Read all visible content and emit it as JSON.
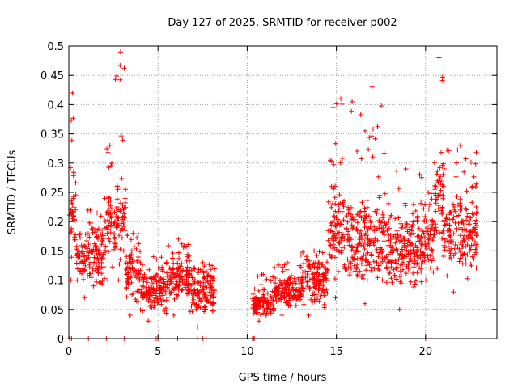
{
  "chart_data": {
    "type": "scatter",
    "title": "Day 127 of 2025, SRMTID for receiver p002",
    "xlabel": "GPS time / hours",
    "ylabel": "SRMTID / TECUs",
    "xlim": [
      0,
      24
    ],
    "ylim": [
      0,
      0.5
    ],
    "x_ticks": [
      0,
      5,
      10,
      15,
      20
    ],
    "x_tick_labels": [
      "0",
      "5",
      "10",
      "15",
      "20"
    ],
    "y_ticks": [
      0,
      0.05,
      0.1,
      0.15,
      0.2,
      0.25,
      0.3,
      0.35,
      0.4,
      0.45,
      0.5
    ],
    "y_tick_labels": [
      "0",
      "0.05",
      "0.1",
      "0.15",
      "0.2",
      "0.25",
      "0.3",
      "0.35",
      "0.4",
      "0.45",
      "0.5"
    ],
    "grid": true,
    "marker": "+",
    "color": "#ff0000",
    "series": [
      {
        "name": "SRMTID",
        "description_ranges": [
          {
            "x_from": 0.0,
            "x_to": 0.4,
            "y_min": 0.1,
            "y_max": 0.42,
            "y_typ": 0.22
          },
          {
            "x_from": 0.4,
            "x_to": 2.0,
            "y_min": 0.07,
            "y_max": 0.22,
            "y_typ": 0.14
          },
          {
            "x_from": 2.0,
            "x_to": 2.6,
            "y_min": 0.1,
            "y_max": 0.33,
            "y_typ": 0.2
          },
          {
            "x_from": 2.6,
            "x_to": 3.2,
            "y_min": 0.1,
            "y_max": 0.49,
            "y_typ": 0.2
          },
          {
            "x_from": 3.2,
            "x_to": 4.0,
            "y_min": 0.04,
            "y_max": 0.18,
            "y_typ": 0.11
          },
          {
            "x_from": 4.0,
            "x_to": 5.5,
            "y_min": 0.03,
            "y_max": 0.14,
            "y_typ": 0.08
          },
          {
            "x_from": 5.5,
            "x_to": 6.8,
            "y_min": 0.04,
            "y_max": 0.17,
            "y_typ": 0.1
          },
          {
            "x_from": 6.8,
            "x_to": 8.2,
            "y_min": 0.02,
            "y_max": 0.13,
            "y_typ": 0.08
          },
          {
            "x_from": 10.3,
            "x_to": 11.5,
            "y_min": 0.03,
            "y_max": 0.11,
            "y_typ": 0.06
          },
          {
            "x_from": 11.5,
            "x_to": 13.0,
            "y_min": 0.04,
            "y_max": 0.13,
            "y_typ": 0.08
          },
          {
            "x_from": 13.0,
            "x_to": 14.5,
            "y_min": 0.04,
            "y_max": 0.15,
            "y_typ": 0.1
          },
          {
            "x_from": 14.5,
            "x_to": 16.0,
            "y_min": 0.07,
            "y_max": 0.41,
            "y_typ": 0.18
          },
          {
            "x_from": 16.0,
            "x_to": 18.0,
            "y_min": 0.06,
            "y_max": 0.43,
            "y_typ": 0.17
          },
          {
            "x_from": 18.0,
            "x_to": 19.8,
            "y_min": 0.05,
            "y_max": 0.29,
            "y_typ": 0.15
          },
          {
            "x_from": 19.8,
            "x_to": 20.5,
            "y_min": 0.1,
            "y_max": 0.25,
            "y_typ": 0.17
          },
          {
            "x_from": 20.5,
            "x_to": 21.0,
            "y_min": 0.12,
            "y_max": 0.48,
            "y_typ": 0.25
          },
          {
            "x_from": 21.0,
            "x_to": 22.9,
            "y_min": 0.08,
            "y_max": 0.33,
            "y_typ": 0.18
          }
        ],
        "zero_points_x": [
          0.05,
          0.15,
          1.1,
          2.1,
          2.2,
          3.1,
          4.9,
          5.0,
          6.1,
          7.2,
          7.5,
          7.7,
          10.3,
          10.35,
          10.4,
          20.0
        ]
      }
    ]
  }
}
